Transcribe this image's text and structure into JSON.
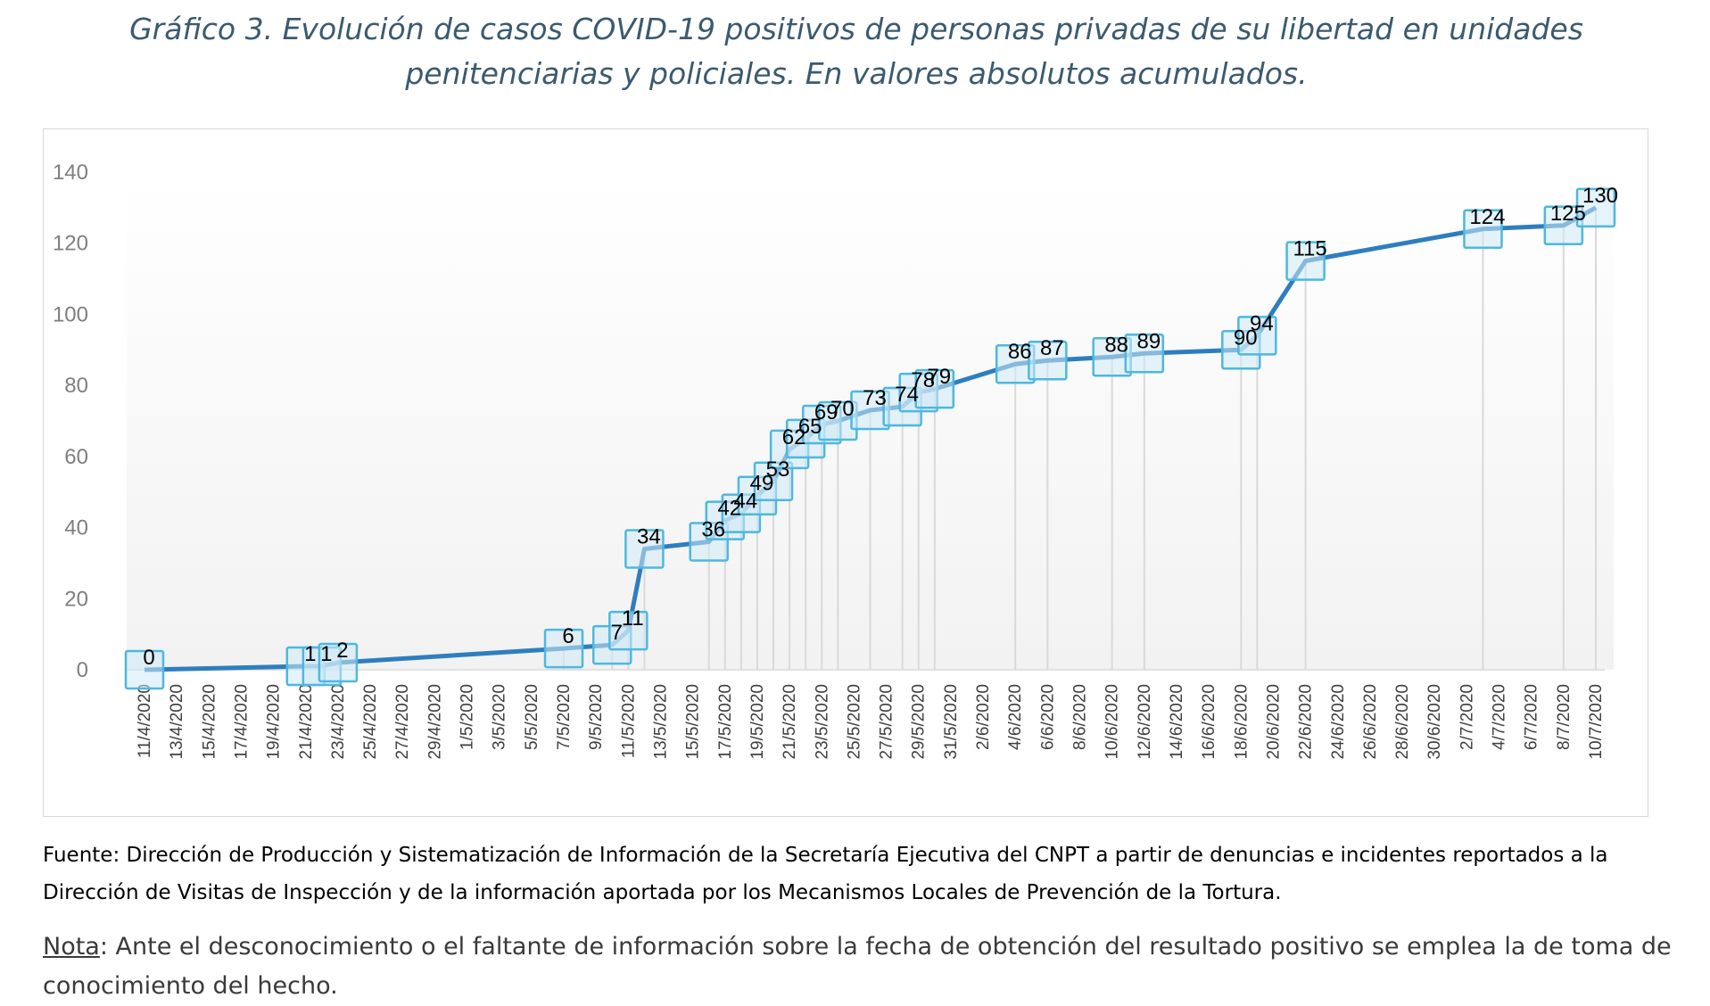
{
  "title": "Gráfico 3. Evolución de casos COVID-19 positivos de personas privadas de su libertad en unidades penitenciarias y policiales. En valores absolutos acumulados.",
  "source": "Fuente: Dirección de Producción y Sistematización de Información de la Secretaría Ejecutiva del CNPT a partir de denuncias e incidentes reportados a la Dirección de Visitas de Inspección y de la información aportada por los Mecanismos Locales de Prevención de la Tortura.",
  "note": {
    "label": "Nota",
    "text": ": Ante el desconocimiento o el faltante de información sobre la fecha de obtención del resultado positivo se emplea la de toma de conocimiento del hecho."
  },
  "colors": {
    "line": "#2e7ebf",
    "marker_fill": "#cfeaf6",
    "marker_stroke": "#4db8e0",
    "drop_line": "#d9d9d9",
    "plot_bg": "#f2f2f2"
  },
  "chart_data": {
    "type": "line",
    "title": "",
    "xlabel": "",
    "ylabel": "",
    "ylim": [
      0,
      140
    ],
    "yticks": [
      0,
      20,
      40,
      60,
      80,
      100,
      120,
      140
    ],
    "x_start": "11/4/2020",
    "x_end": "10/7/2020",
    "xtick_labels": [
      "11/4/2020",
      "13/4/2020",
      "15/4/2020",
      "17/4/2020",
      "19/4/2020",
      "21/4/2020",
      "23/4/2020",
      "25/4/2020",
      "27/4/2020",
      "29/4/2020",
      "1/5/2020",
      "3/5/2020",
      "5/5/2020",
      "7/5/2020",
      "9/5/2020",
      "11/5/2020",
      "13/5/2020",
      "15/5/2020",
      "17/5/2020",
      "19/5/2020",
      "21/5/2020",
      "23/5/2020",
      "25/5/2020",
      "27/5/2020",
      "29/5/2020",
      "31/5/2020",
      "2/6/2020",
      "4/6/2020",
      "6/6/2020",
      "8/6/2020",
      "10/6/2020",
      "12/6/2020",
      "14/6/2020",
      "16/6/2020",
      "18/6/2020",
      "20/6/2020",
      "22/6/2020",
      "24/6/2020",
      "26/6/2020",
      "28/6/2020",
      "30/6/2020",
      "2/7/2020",
      "4/7/2020",
      "6/7/2020",
      "8/7/2020",
      "10/7/2020"
    ],
    "series": [
      {
        "x": [
          "11/4/2020",
          "21/4/2020",
          "22/4/2020",
          "23/4/2020",
          "7/5/2020",
          "10/5/2020",
          "11/5/2020",
          "12/5/2020",
          "16/5/2020",
          "17/5/2020",
          "18/5/2020",
          "19/5/2020",
          "20/5/2020",
          "21/5/2020",
          "22/5/2020",
          "23/5/2020",
          "24/5/2020",
          "26/5/2020",
          "28/5/2020",
          "29/5/2020",
          "30/5/2020",
          "4/6/2020",
          "6/6/2020",
          "10/6/2020",
          "12/6/2020",
          "18/6/2020",
          "19/6/2020",
          "22/6/2020",
          "3/7/2020",
          "8/7/2020",
          "10/7/2020"
        ],
        "values": [
          0,
          1,
          1,
          2,
          6,
          7,
          11,
          34,
          36,
          42,
          44,
          49,
          53,
          62,
          65,
          69,
          70,
          73,
          74,
          78,
          79,
          86,
          87,
          88,
          89,
          90,
          94,
          115,
          124,
          125,
          130
        ],
        "data_labels": [
          "0",
          "1",
          "1",
          "2",
          "6",
          "7",
          "11",
          "34",
          "36",
          "42",
          "44",
          "49",
          "53",
          "62",
          "65",
          "69",
          "70",
          "73",
          "74",
          "78",
          "79",
          "86",
          "87",
          "88",
          "89",
          "90",
          "94",
          "115",
          "124",
          "125",
          "130"
        ]
      }
    ],
    "grid": false,
    "legend": "none"
  }
}
